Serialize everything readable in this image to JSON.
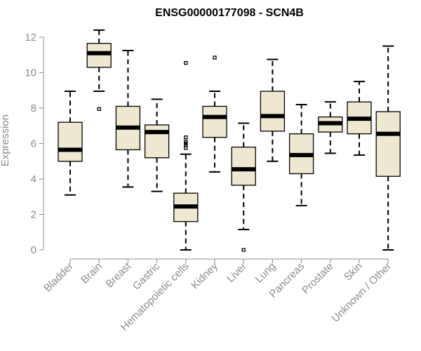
{
  "chart_data": {
    "type": "box",
    "title": "ENSG00000177098 - SCN4B",
    "ylabel": "Expression",
    "xlabel": "",
    "ylim": [
      0,
      12
    ],
    "yticks": [
      0,
      2,
      4,
      6,
      8,
      10,
      12
    ],
    "grid": false,
    "colors": {
      "box_fill": "#efe8d0",
      "box_stroke": "#000000",
      "axis": "#8c8c8c"
    },
    "categories": [
      "Bladder",
      "Brain",
      "Breast",
      "Gastric",
      "Hematopoietic cells",
      "Kidney",
      "Liver",
      "Lung",
      "Pancreas",
      "Prostate",
      "Skin",
      "Unknown / Other"
    ],
    "boxes": [
      {
        "whisker_low": 3.1,
        "q1": 5.0,
        "median": 5.65,
        "q3": 7.2,
        "whisker_high": 8.95,
        "outliers": []
      },
      {
        "whisker_low": 8.95,
        "q1": 10.3,
        "median": 11.1,
        "q3": 11.65,
        "whisker_high": 12.4,
        "outliers": [
          7.95
        ]
      },
      {
        "whisker_low": 3.55,
        "q1": 5.65,
        "median": 6.9,
        "q3": 8.1,
        "whisker_high": 11.25,
        "outliers": []
      },
      {
        "whisker_low": 3.3,
        "q1": 5.2,
        "median": 6.65,
        "q3": 7.05,
        "whisker_high": 8.5,
        "outliers": []
      },
      {
        "whisker_low": 0.0,
        "q1": 1.6,
        "median": 2.45,
        "q3": 3.2,
        "whisker_high": 5.4,
        "outliers": [
          5.75,
          5.9,
          6.0,
          6.1,
          6.35,
          10.55
        ]
      },
      {
        "whisker_low": 4.4,
        "q1": 6.35,
        "median": 7.5,
        "q3": 8.1,
        "whisker_high": 8.95,
        "outliers": [
          10.85
        ]
      },
      {
        "whisker_low": 1.15,
        "q1": 3.65,
        "median": 4.55,
        "q3": 5.8,
        "whisker_high": 7.15,
        "outliers": [
          0.0
        ]
      },
      {
        "whisker_low": 5.0,
        "q1": 6.7,
        "median": 7.55,
        "q3": 8.95,
        "whisker_high": 10.75,
        "outliers": []
      },
      {
        "whisker_low": 2.5,
        "q1": 4.3,
        "median": 5.35,
        "q3": 6.55,
        "whisker_high": 8.2,
        "outliers": []
      },
      {
        "whisker_low": 5.45,
        "q1": 6.65,
        "median": 7.15,
        "q3": 7.5,
        "whisker_high": 8.35,
        "outliers": []
      },
      {
        "whisker_low": 5.35,
        "q1": 6.55,
        "median": 7.4,
        "q3": 8.35,
        "whisker_high": 9.5,
        "outliers": []
      },
      {
        "whisker_low": 0.0,
        "q1": 4.15,
        "median": 6.55,
        "q3": 7.8,
        "whisker_high": 11.5,
        "outliers": []
      }
    ]
  }
}
